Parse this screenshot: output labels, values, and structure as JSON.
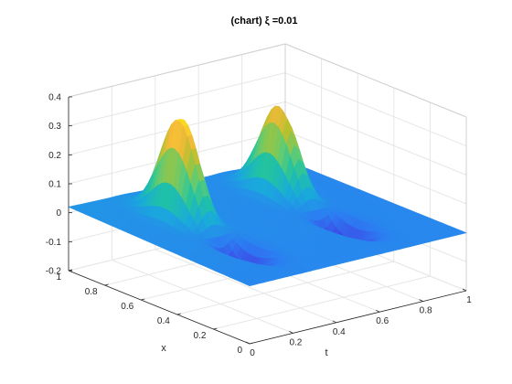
{
  "chart_data": {
    "type": "surface",
    "title": "(chart) ξ =0.01",
    "xlabel": "t",
    "ylabel": "x",
    "zlabel": "",
    "xlim": [
      0,
      1
    ],
    "ylim": [
      0,
      1
    ],
    "zlim": [
      -0.2,
      0.4
    ],
    "x_ticks": [
      "0",
      "0.2",
      "0.4",
      "0.6",
      "0.8",
      "1"
    ],
    "y_ticks": [
      "0",
      "0.2",
      "0.4",
      "0.6",
      "0.8",
      "1"
    ],
    "z_ticks": [
      "-0.2",
      "-0.1",
      "0",
      "0.1",
      "0.2",
      "0.3",
      "0.4"
    ],
    "grid": true,
    "colormap": [
      "#3e26a8",
      "#3e48e6",
      "#2c7df2",
      "#1aa9dc",
      "#20c2a4",
      "#62cb72",
      "#b4c12d",
      "#f6b93a",
      "#f9e21d"
    ],
    "surface": {
      "t": [
        0,
        0.05,
        0.1,
        0.15,
        0.2,
        0.25,
        0.3,
        0.35,
        0.4,
        0.45,
        0.5,
        0.55,
        0.6,
        0.65,
        0.7,
        0.75,
        0.8,
        0.85,
        0.9,
        0.95,
        1.0
      ],
      "x": [
        0,
        0.05,
        0.1,
        0.15,
        0.2,
        0.25,
        0.3,
        0.35,
        0.4,
        0.45,
        0.5,
        0.55,
        0.6,
        0.65,
        0.7,
        0.75,
        0.8,
        0.85,
        0.9,
        0.95,
        1.0
      ],
      "peaks": [
        {
          "t": 0.25,
          "x": 0.68,
          "height": 0.36
        },
        {
          "t": 0.25,
          "x": 0.35,
          "height": -0.12
        },
        {
          "t": 0.72,
          "x": 0.7,
          "height": 0.31
        },
        {
          "t": 0.72,
          "x": 0.35,
          "height": -0.13
        }
      ]
    }
  }
}
